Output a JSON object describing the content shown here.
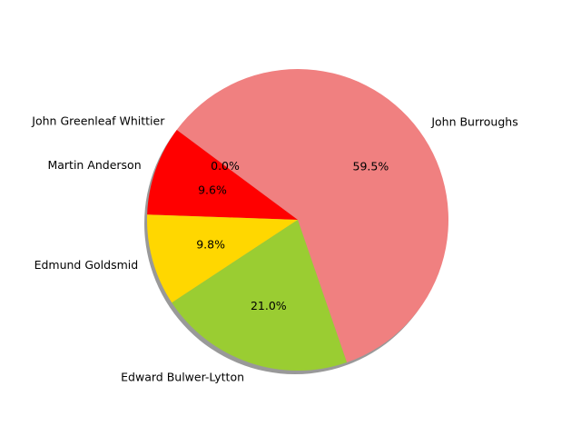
{
  "chart_data": {
    "type": "pie",
    "title": "",
    "slices": [
      {
        "label": "John Burroughs",
        "value": 59.5,
        "pct_label": "59.5%",
        "color": "#F08080"
      },
      {
        "label": "John Greenleaf Whittier",
        "value": 0.0,
        "pct_label": "0.0%",
        "color": "#00FF00"
      },
      {
        "label": "Martin Anderson",
        "value": 9.6,
        "pct_label": "9.6%",
        "color": "#FF0000"
      },
      {
        "label": "Edmund Goldsmid",
        "value": 9.8,
        "pct_label": "9.8%",
        "color": "#FFD700"
      },
      {
        "label": "Edward Bulwer-Lytton",
        "value": 21.0,
        "pct_label": "21.0%",
        "color": "#9ACD32"
      }
    ],
    "start_angle_deg": -71,
    "direction": "counterclockwise",
    "shadow": true,
    "legend": "none"
  }
}
